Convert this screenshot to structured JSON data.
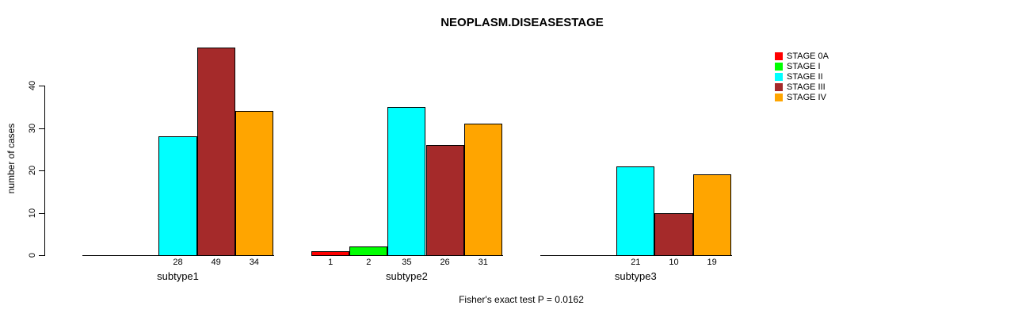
{
  "chart_data": {
    "type": "bar",
    "title": "NEOPLASM.DISEASESTAGE",
    "ylabel": "number of cases",
    "xlabel": "",
    "footer": "Fisher's exact test P = 0.0162",
    "categories": [
      "subtype1",
      "subtype2",
      "subtype3"
    ],
    "series": [
      {
        "name": "STAGE 0A",
        "color": "#FF0000",
        "values": [
          0,
          1,
          0
        ]
      },
      {
        "name": "STAGE I",
        "color": "#00FF00",
        "values": [
          0,
          2,
          0
        ]
      },
      {
        "name": "STAGE II",
        "color": "#00FFFF",
        "values": [
          28,
          35,
          21
        ]
      },
      {
        "name": "STAGE III",
        "color": "#A52A2A",
        "values": [
          49,
          26,
          10
        ]
      },
      {
        "name": "STAGE IV",
        "color": "#FFA500",
        "values": [
          34,
          31,
          19
        ]
      }
    ],
    "y_ticks": [
      0,
      10,
      20,
      30,
      40
    ],
    "ylim": [
      0,
      49
    ],
    "grid": false,
    "legend_position": "top-right",
    "bar_value_labels": "shown below axis for nonzero bars",
    "axis_color": "#000000",
    "bar_border_color": "#000000",
    "background_color": "#FFFFFF"
  }
}
